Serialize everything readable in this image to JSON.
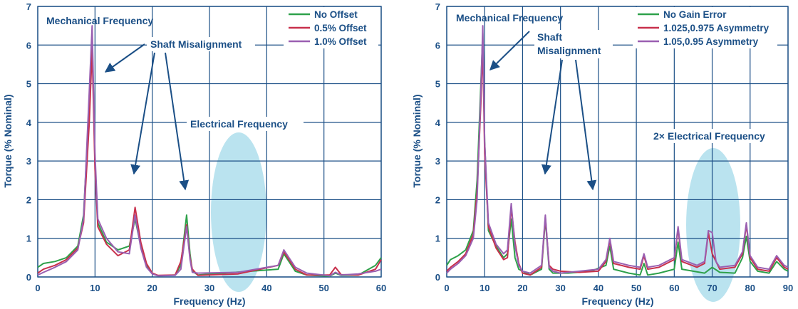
{
  "chart_data": [
    {
      "type": "line",
      "xlabel": "Frequency (Hz)",
      "ylabel": "Torque (% Nominal)",
      "xlim": [
        0,
        60
      ],
      "ylim": [
        0,
        7
      ],
      "xticks": [
        0,
        10,
        20,
        30,
        40,
        50,
        60
      ],
      "yticks": [
        0,
        1,
        2,
        3,
        4,
        5,
        6,
        7
      ],
      "grid": true,
      "legend_position": "top-right",
      "series": [
        {
          "name": "No Offset",
          "color": "#2ea14a",
          "points": [
            [
              0,
              0.25
            ],
            [
              1,
              0.35
            ],
            [
              3,
              0.4
            ],
            [
              5,
              0.5
            ],
            [
              7,
              0.8
            ],
            [
              8,
              1.6
            ],
            [
              9,
              4.5
            ],
            [
              9.5,
              6.2
            ],
            [
              10,
              3.0
            ],
            [
              10.5,
              1.4
            ],
            [
              12,
              0.9
            ],
            [
              14,
              0.7
            ],
            [
              16,
              0.8
            ],
            [
              17,
              1.5
            ],
            [
              18,
              0.8
            ],
            [
              19,
              0.3
            ],
            [
              20,
              0.1
            ],
            [
              21,
              0.03
            ],
            [
              24,
              0.05
            ],
            [
              25,
              0.3
            ],
            [
              26,
              1.6
            ],
            [
              26.6,
              0.6
            ],
            [
              27,
              0.15
            ],
            [
              28,
              0.05
            ],
            [
              42,
              0.2
            ],
            [
              43,
              0.6
            ],
            [
              45,
              0.15
            ],
            [
              47,
              0.05
            ],
            [
              51,
              0.02
            ],
            [
              52,
              0.1
            ],
            [
              53,
              0.04
            ],
            [
              56,
              0.05
            ],
            [
              59,
              0.3
            ],
            [
              60,
              0.5
            ]
          ]
        },
        {
          "name": "0.5% Offset",
          "color": "#c8304c",
          "points": [
            [
              0,
              0.1
            ],
            [
              1,
              0.2
            ],
            [
              3,
              0.3
            ],
            [
              5,
              0.45
            ],
            [
              7,
              0.75
            ],
            [
              8,
              1.4
            ],
            [
              9,
              4.0
            ],
            [
              9.5,
              5.9
            ],
            [
              10,
              2.8
            ],
            [
              10.5,
              1.3
            ],
            [
              12,
              0.85
            ],
            [
              14,
              0.55
            ],
            [
              16,
              0.7
            ],
            [
              17,
              1.8
            ],
            [
              18,
              0.9
            ],
            [
              19,
              0.35
            ],
            [
              20,
              0.1
            ],
            [
              21,
              0.04
            ],
            [
              24,
              0.05
            ],
            [
              25,
              0.4
            ],
            [
              26,
              1.35
            ],
            [
              26.6,
              0.5
            ],
            [
              27,
              0.2
            ],
            [
              28,
              0.04
            ],
            [
              35,
              0.08
            ],
            [
              42,
              0.3
            ],
            [
              43,
              0.65
            ],
            [
              45,
              0.2
            ],
            [
              47,
              0.05
            ],
            [
              51,
              0.05
            ],
            [
              52,
              0.25
            ],
            [
              53,
              0.06
            ],
            [
              56,
              0.05
            ],
            [
              59,
              0.2
            ],
            [
              60,
              0.45
            ]
          ]
        },
        {
          "name": "1.0% Offset",
          "color": "#9a5fb1",
          "points": [
            [
              0,
              0.05
            ],
            [
              1,
              0.12
            ],
            [
              3,
              0.25
            ],
            [
              5,
              0.4
            ],
            [
              7,
              0.7
            ],
            [
              8,
              1.5
            ],
            [
              9,
              4.8
            ],
            [
              9.5,
              6.5
            ],
            [
              10,
              3.2
            ],
            [
              10.5,
              1.5
            ],
            [
              12,
              1.0
            ],
            [
              14,
              0.65
            ],
            [
              16,
              0.6
            ],
            [
              17,
              1.6
            ],
            [
              18,
              0.75
            ],
            [
              19,
              0.25
            ],
            [
              20,
              0.08
            ],
            [
              21,
              0.03
            ],
            [
              24,
              0.04
            ],
            [
              25,
              0.2
            ],
            [
              26,
              1.3
            ],
            [
              26.6,
              0.45
            ],
            [
              27,
              0.12
            ],
            [
              28,
              0.1
            ],
            [
              35,
              0.12
            ],
            [
              42,
              0.3
            ],
            [
              43,
              0.7
            ],
            [
              45,
              0.25
            ],
            [
              47,
              0.1
            ],
            [
              51,
              0.03
            ],
            [
              52,
              0.12
            ],
            [
              53,
              0.05
            ],
            [
              56,
              0.08
            ],
            [
              59,
              0.15
            ],
            [
              60,
              0.2
            ]
          ]
        }
      ],
      "annotations": {
        "mechanical": "Mechanical Frequency",
        "shaft": "Shaft Misalignment",
        "electrical": "Electrical Frequency"
      }
    },
    {
      "type": "line",
      "xlabel": "Frequency (Hz)",
      "ylabel": "Torque (% Nominal)",
      "xlim": [
        0,
        90
      ],
      "ylim": [
        0,
        7
      ],
      "xticks": [
        0,
        10,
        20,
        30,
        40,
        50,
        60,
        70,
        80,
        90
      ],
      "yticks": [
        0,
        1,
        2,
        3,
        4,
        5,
        6,
        7
      ],
      "grid": true,
      "legend_position": "top-right",
      "series": [
        {
          "name": "No Gain Error",
          "color": "#2ea14a",
          "points": [
            [
              0,
              0.3
            ],
            [
              1,
              0.45
            ],
            [
              3,
              0.55
            ],
            [
              5,
              0.7
            ],
            [
              7,
              1.2
            ],
            [
              8,
              2.5
            ],
            [
              9,
              5.0
            ],
            [
              9.5,
              6.3
            ],
            [
              10,
              3.5
            ],
            [
              11,
              1.2
            ],
            [
              13,
              0.8
            ],
            [
              15,
              0.5
            ],
            [
              16,
              0.6
            ],
            [
              17,
              1.5
            ],
            [
              18,
              0.5
            ],
            [
              19,
              0.2
            ],
            [
              22,
              0.05
            ],
            [
              25,
              0.2
            ],
            [
              26,
              1.5
            ],
            [
              27,
              0.2
            ],
            [
              28,
              0.1
            ],
            [
              32,
              0.1
            ],
            [
              38,
              0.15
            ],
            [
              42,
              0.3
            ],
            [
              43,
              0.8
            ],
            [
              44,
              0.2
            ],
            [
              48,
              0.1
            ],
            [
              51,
              0.05
            ],
            [
              52,
              0.35
            ],
            [
              53,
              0.05
            ],
            [
              56,
              0.1
            ],
            [
              60,
              0.2
            ],
            [
              61,
              0.9
            ],
            [
              62,
              0.2
            ],
            [
              65,
              0.15
            ],
            [
              68,
              0.1
            ],
            [
              70,
              0.25
            ],
            [
              72,
              0.12
            ],
            [
              76,
              0.1
            ],
            [
              78,
              0.5
            ],
            [
              79,
              1.05
            ],
            [
              80,
              0.4
            ],
            [
              82,
              0.15
            ],
            [
              85,
              0.1
            ],
            [
              87,
              0.4
            ],
            [
              89,
              0.2
            ],
            [
              90,
              0.15
            ]
          ]
        },
        {
          "name": "1.025,0.975 Asymmetry",
          "color": "#c8304c",
          "points": [
            [
              0,
              0.15
            ],
            [
              1,
              0.25
            ],
            [
              3,
              0.4
            ],
            [
              5,
              0.6
            ],
            [
              7,
              1.1
            ],
            [
              8,
              2.2
            ],
            [
              9,
              4.5
            ],
            [
              9.5,
              6.0
            ],
            [
              10,
              3.2
            ],
            [
              11,
              1.3
            ],
            [
              13,
              0.75
            ],
            [
              15,
              0.45
            ],
            [
              16,
              0.5
            ],
            [
              17,
              1.8
            ],
            [
              18,
              0.9
            ],
            [
              19,
              0.35
            ],
            [
              20,
              0.1
            ],
            [
              22,
              0.05
            ],
            [
              25,
              0.25
            ],
            [
              26,
              1.55
            ],
            [
              27,
              0.3
            ],
            [
              28,
              0.2
            ],
            [
              30,
              0.15
            ],
            [
              35,
              0.12
            ],
            [
              40,
              0.15
            ],
            [
              42,
              0.4
            ],
            [
              43,
              0.95
            ],
            [
              44,
              0.35
            ],
            [
              48,
              0.25
            ],
            [
              51,
              0.2
            ],
            [
              52,
              0.55
            ],
            [
              53,
              0.2
            ],
            [
              56,
              0.25
            ],
            [
              60,
              0.45
            ],
            [
              61,
              1.25
            ],
            [
              62,
              0.4
            ],
            [
              66,
              0.25
            ],
            [
              68,
              0.35
            ],
            [
              69,
              1.15
            ],
            [
              70,
              0.6
            ],
            [
              72,
              0.2
            ],
            [
              76,
              0.25
            ],
            [
              78,
              0.6
            ],
            [
              79,
              1.35
            ],
            [
              80,
              0.5
            ],
            [
              82,
              0.2
            ],
            [
              85,
              0.15
            ],
            [
              87,
              0.5
            ],
            [
              89,
              0.25
            ],
            [
              90,
              0.2
            ]
          ]
        },
        {
          "name": "1.05,0.95 Asymmetry",
          "color": "#9a5fb1",
          "points": [
            [
              0,
              0.1
            ],
            [
              1,
              0.2
            ],
            [
              3,
              0.35
            ],
            [
              5,
              0.55
            ],
            [
              7,
              1.0
            ],
            [
              8,
              2.0
            ],
            [
              9,
              4.8
            ],
            [
              9.5,
              6.5
            ],
            [
              10,
              3.5
            ],
            [
              11,
              1.4
            ],
            [
              13,
              0.85
            ],
            [
              15,
              0.6
            ],
            [
              16,
              0.7
            ],
            [
              17,
              1.9
            ],
            [
              18,
              0.8
            ],
            [
              19,
              0.3
            ],
            [
              20,
              0.15
            ],
            [
              22,
              0.1
            ],
            [
              25,
              0.3
            ],
            [
              26,
              1.6
            ],
            [
              27,
              0.25
            ],
            [
              28,
              0.15
            ],
            [
              30,
              0.1
            ],
            [
              35,
              0.15
            ],
            [
              40,
              0.2
            ],
            [
              42,
              0.45
            ],
            [
              43,
              1.0
            ],
            [
              44,
              0.4
            ],
            [
              48,
              0.3
            ],
            [
              51,
              0.25
            ],
            [
              52,
              0.6
            ],
            [
              53,
              0.25
            ],
            [
              56,
              0.3
            ],
            [
              60,
              0.5
            ],
            [
              61,
              1.3
            ],
            [
              62,
              0.45
            ],
            [
              66,
              0.3
            ],
            [
              68,
              0.4
            ],
            [
              69,
              1.2
            ],
            [
              70,
              1.15
            ],
            [
              71,
              0.4
            ],
            [
              72,
              0.25
            ],
            [
              76,
              0.3
            ],
            [
              78,
              0.65
            ],
            [
              79,
              1.4
            ],
            [
              80,
              0.55
            ],
            [
              82,
              0.25
            ],
            [
              85,
              0.2
            ],
            [
              87,
              0.55
            ],
            [
              89,
              0.3
            ],
            [
              90,
              0.25
            ]
          ]
        }
      ],
      "annotations": {
        "mechanical": "Mechanical Frequency",
        "shaft_line1": "Shaft",
        "shaft_line2": "Misalignment",
        "electrical": "2× Electrical Frequency"
      }
    }
  ]
}
